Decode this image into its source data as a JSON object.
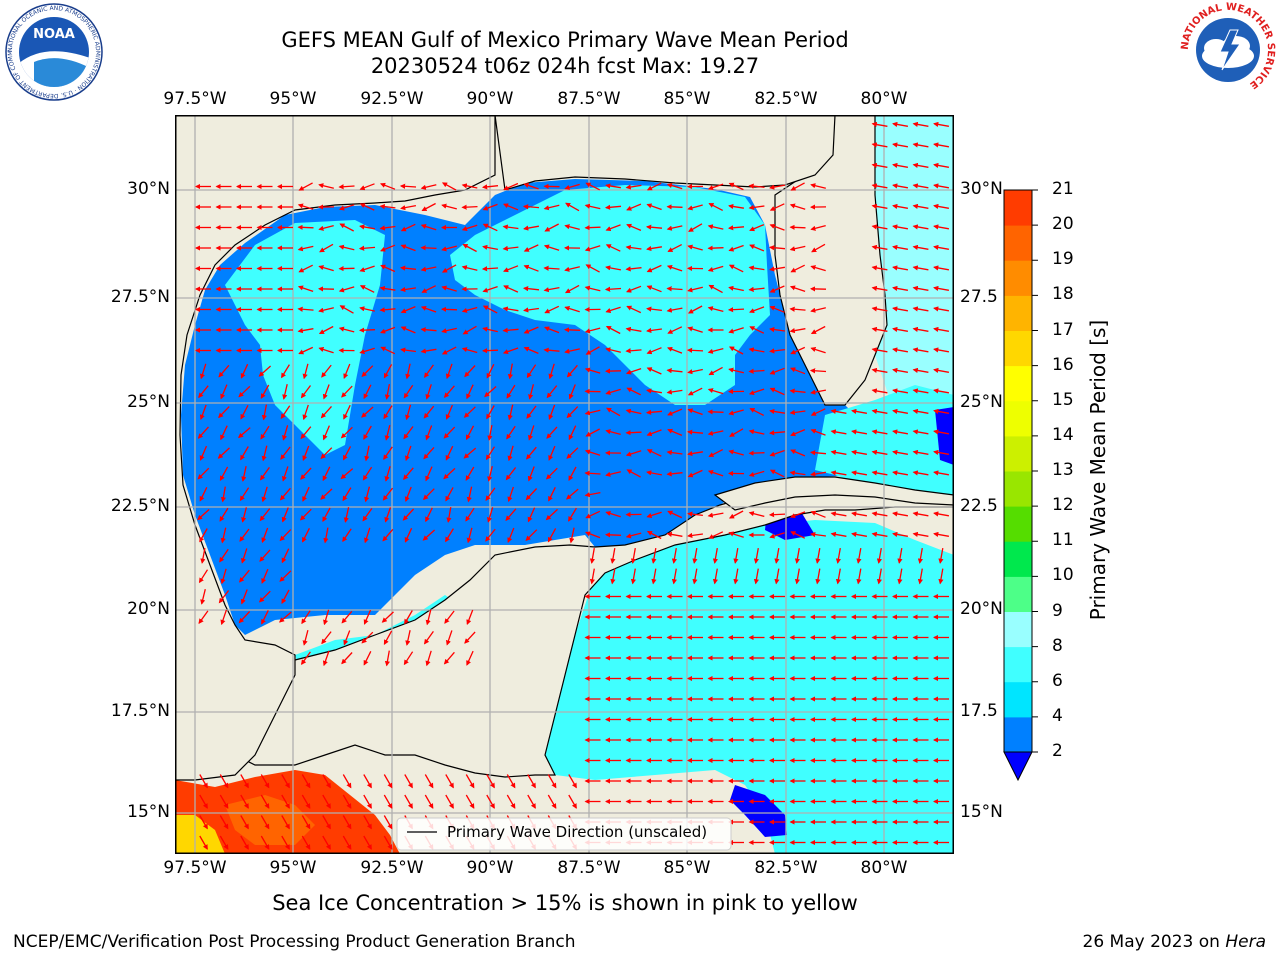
{
  "title": {
    "line1": "GEFS MEAN Gulf of Mexico Primary Wave Mean Period",
    "line2": "20230524 t06z 024h fcst   Max: 19.27"
  },
  "subtitle": "Sea Ice Concentration > 15% is shown in pink to yellow",
  "footer": {
    "left": "NCEP/EMC/Verification Post Processing Product Generation Branch",
    "date": "26 May 2023 on ",
    "host": "Hera"
  },
  "logos": {
    "noaa": {
      "text": "NOAA",
      "ring_text": "NATIONAL OCEANIC AND ATMOSPHERIC ADMINISTRATION · U.S. DEPARTMENT OF COMMERCE"
    },
    "nws": {
      "ring_text": "NATIONAL WEATHER SERVICE"
    }
  },
  "map": {
    "lon_ticks": [
      "97.5°W",
      "95°W",
      "92.5°W",
      "90°W",
      "87.5°W",
      "85°W",
      "82.5°W",
      "80°W"
    ],
    "lat_ticks": [
      "30°N",
      "27.5°N",
      "25°N",
      "22.5°N",
      "20°N",
      "17.5°N",
      "15°N"
    ],
    "lat_ticks_right": [
      "30°N",
      "27.5",
      "25°N",
      "22.5",
      "20°N",
      "17.5",
      "15°N"
    ],
    "legend_label": "Primary Wave Direction (unscaled)",
    "arrow_color": "#ff0000",
    "land_color": "#efedde",
    "grid_color": "#b0b0b0"
  },
  "colorbar": {
    "label": "Primary Wave Mean Period [s]",
    "ticks": [
      "2",
      "4",
      "6",
      "8",
      "9",
      "10",
      "11",
      "12",
      "13",
      "14",
      "15",
      "16",
      "17",
      "18",
      "19",
      "20",
      "21"
    ],
    "colors": [
      "#0080ff",
      "#00e5ff",
      "#40ffff",
      "#99ffff",
      "#4dff88",
      "#00e84d",
      "#55dd00",
      "#99e600",
      "#ccf000",
      "#eeff00",
      "#ffff00",
      "#ffd700",
      "#ffb400",
      "#ff8c00",
      "#ff6400",
      "#ff3c00",
      "#ff0000"
    ],
    "under_color": "#0000ff"
  }
}
